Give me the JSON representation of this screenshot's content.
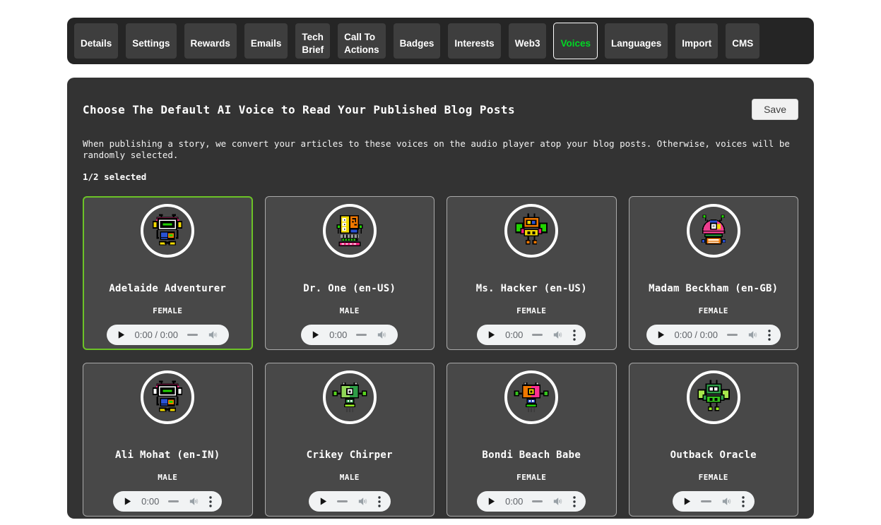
{
  "theme": {
    "active_tab_color": "#00d824",
    "selected_card_border_color": "#6cc327",
    "panel_background": "#333333",
    "card_background": "#484848",
    "tab_background": "#3e3e3e"
  },
  "nav": {
    "tabs": [
      {
        "label": "Details",
        "active": false
      },
      {
        "label": "Settings",
        "active": false
      },
      {
        "label": "Rewards",
        "active": false
      },
      {
        "label": "Emails",
        "active": false
      },
      {
        "label": "Tech Brief",
        "active": false
      },
      {
        "label": "Call To Actions",
        "active": false
      },
      {
        "label": "Badges",
        "active": false
      },
      {
        "label": "Interests",
        "active": false
      },
      {
        "label": "Web3",
        "active": false
      },
      {
        "label": "Voices",
        "active": true
      },
      {
        "label": "Languages",
        "active": false
      },
      {
        "label": "Import",
        "active": false
      },
      {
        "label": "CMS",
        "active": false
      }
    ]
  },
  "main": {
    "title": "Choose The Default AI Voice to Read Your Published Blog Posts",
    "save_label": "Save",
    "description": "When publishing a story, we convert your articles to these voices on the audio player atop your blog posts. Otherwise, voices will be randomly selected.",
    "selection_status": "1/2 selected"
  },
  "voices": [
    {
      "name": "Adelaide Adventurer",
      "gender": "FEMALE",
      "selected": true,
      "player": {
        "time": "0:00 / 0:00",
        "has_menu": false
      },
      "avatar": {
        "type": "headset",
        "colors": {
          "band": "#ee1d7a",
          "ears": "#f2d900",
          "eye": "#21d400",
          "panel": "#2a52d4",
          "screen": "#f07800",
          "screenInner": "#21d400",
          "feet": "#f2d900"
        }
      }
    },
    {
      "name": "Dr. One (en-US)",
      "gender": "MALE",
      "selected": false,
      "player": {
        "time": "0:00",
        "has_menu": false
      },
      "avatar": {
        "type": "circuit",
        "colors": {
          "boardA": "#f2d900",
          "boardB": "#f07800",
          "dots": "#21d400",
          "bar": "#ee1d7a",
          "chip": "#2a52d4"
        }
      }
    },
    {
      "name": "Ms. Hacker (en-US)",
      "gender": "FEMALE",
      "selected": false,
      "player": {
        "time": "0:00",
        "has_menu": true
      },
      "avatar": {
        "type": "winged",
        "colors": {
          "head": "#f07800",
          "eyeL": "#f2d900",
          "eyeR": "#2a52d4",
          "wings": "#21d400",
          "arms": "#ee1d7a",
          "body": "#f2d900",
          "feet": "#f07800"
        }
      }
    },
    {
      "name": "Madam Beckham (en-GB)",
      "gender": "FEMALE",
      "selected": false,
      "player": {
        "time": "0:00 / 0:00",
        "has_menu": true
      },
      "avatar": {
        "type": "dome",
        "colors": {
          "dome": "#ee3d8f",
          "swirlA": "#2a52d4",
          "swirlB": "#f2d900",
          "center": "#ffffff",
          "balls": "#21d400",
          "band": "#21a93c",
          "body": "#f07800",
          "sides": "#2a52d4"
        }
      }
    },
    {
      "name": "Ali Mohat (en-IN)",
      "gender": "MALE",
      "selected": false,
      "player": {
        "time": "0:00",
        "has_menu": true
      },
      "avatar": {
        "type": "headset",
        "colors": {
          "band": "#ee1d7a",
          "ears": "#ffffff",
          "eye": "#21d400",
          "panel": "#2a52d4",
          "screen": "#f07800",
          "screenInner": "#21d400",
          "feet": "#f2d900"
        }
      }
    },
    {
      "name": "Crikey Chirper",
      "gender": "MALE",
      "selected": false,
      "player": {
        "time": "",
        "has_menu": true
      },
      "avatar": {
        "type": "rocket",
        "colors": {
          "headL": "#8fd657",
          "headR": "#2e9e47",
          "center": "#ffffff",
          "thrusters": "#58d41f",
          "body": "#2e9e47",
          "flame": "#9bef21"
        }
      }
    },
    {
      "name": "Bondi Beach Babe",
      "gender": "FEMALE",
      "selected": false,
      "player": {
        "time": "0:00",
        "has_menu": true
      },
      "avatar": {
        "type": "rocket",
        "colors": {
          "headL": "#f07800",
          "headR": "#ff2f92",
          "center": "#f2d900",
          "thrusters": "#35c41d",
          "body": "#2a52d4",
          "flame": "#21d400"
        }
      }
    },
    {
      "name": "Outback Oracle",
      "gender": "FEMALE",
      "selected": false,
      "player": {
        "time": "",
        "has_menu": true
      },
      "avatar": {
        "type": "winged",
        "colors": {
          "head": "#2e9e47",
          "eyeL": "#ffffff",
          "eyeR": "#ffffff",
          "wings": "#a8e84c",
          "arms": "#2e9e47",
          "body": "#35c41d",
          "feet": "#9bef21"
        }
      }
    }
  ]
}
